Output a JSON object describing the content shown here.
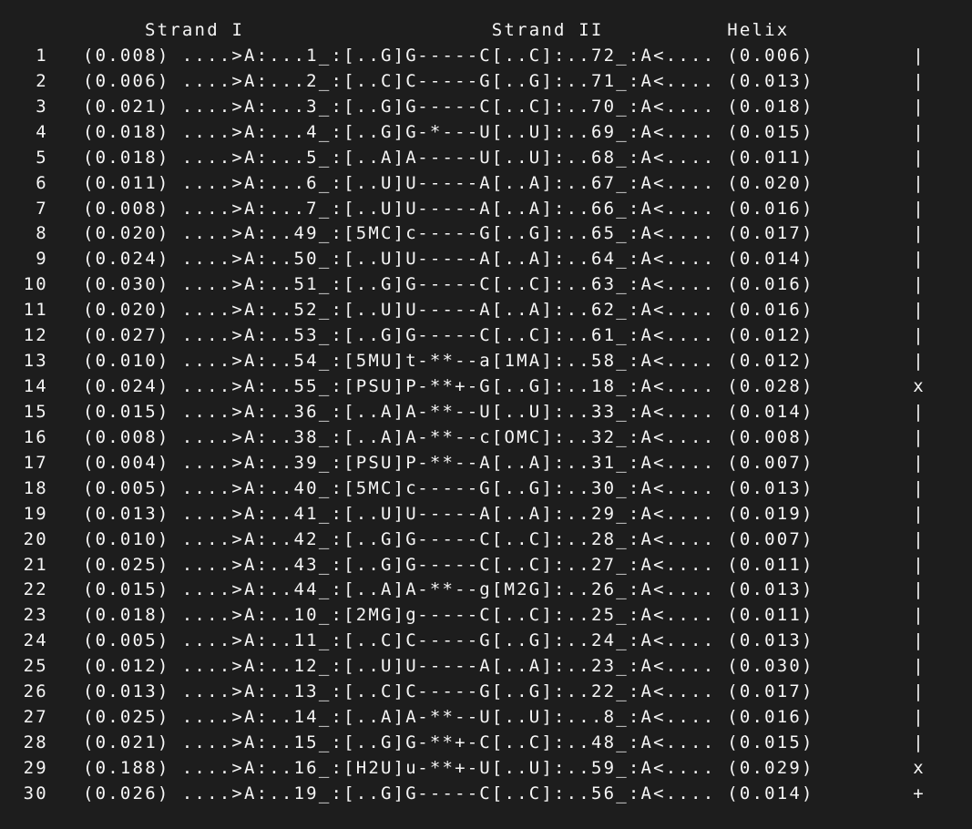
{
  "terminal": {
    "bg_color": "#1d1d1d",
    "fg_color": "#f6f6f6",
    "headers": {
      "strand_i": "Strand I",
      "strand_ii": "Strand II",
      "helix": "Helix"
    },
    "rows": [
      {
        "n": "1",
        "rmsd1": "(0.008)",
        "strand1": "....>A:...1_:[..G]G",
        "bond": "-----",
        "strand2": "C[..C]:..72_:A<....",
        "rmsd2": "(0.006)",
        "helix_mark": "|"
      },
      {
        "n": "2",
        "rmsd1": "(0.006)",
        "strand1": "....>A:...2_:[..C]C",
        "bond": "-----",
        "strand2": "G[..G]:..71_:A<....",
        "rmsd2": "(0.013)",
        "helix_mark": "|"
      },
      {
        "n": "3",
        "rmsd1": "(0.021)",
        "strand1": "....>A:...3_:[..G]G",
        "bond": "-----",
        "strand2": "C[..C]:..70_:A<....",
        "rmsd2": "(0.018)",
        "helix_mark": "|"
      },
      {
        "n": "4",
        "rmsd1": "(0.018)",
        "strand1": "....>A:...4_:[..G]G",
        "bond": "-*---",
        "strand2": "U[..U]:..69_:A<....",
        "rmsd2": "(0.015)",
        "helix_mark": "|"
      },
      {
        "n": "5",
        "rmsd1": "(0.018)",
        "strand1": "....>A:...5_:[..A]A",
        "bond": "-----",
        "strand2": "U[..U]:..68_:A<....",
        "rmsd2": "(0.011)",
        "helix_mark": "|"
      },
      {
        "n": "6",
        "rmsd1": "(0.011)",
        "strand1": "....>A:...6_:[..U]U",
        "bond": "-----",
        "strand2": "A[..A]:..67_:A<....",
        "rmsd2": "(0.020)",
        "helix_mark": "|"
      },
      {
        "n": "7",
        "rmsd1": "(0.008)",
        "strand1": "....>A:...7_:[..U]U",
        "bond": "-----",
        "strand2": "A[..A]:..66_:A<....",
        "rmsd2": "(0.016)",
        "helix_mark": "|"
      },
      {
        "n": "8",
        "rmsd1": "(0.020)",
        "strand1": "....>A:..49_:[5MC]c",
        "bond": "-----",
        "strand2": "G[..G]:..65_:A<....",
        "rmsd2": "(0.017)",
        "helix_mark": "|"
      },
      {
        "n": "9",
        "rmsd1": "(0.024)",
        "strand1": "....>A:..50_:[..U]U",
        "bond": "-----",
        "strand2": "A[..A]:..64_:A<....",
        "rmsd2": "(0.014)",
        "helix_mark": "|"
      },
      {
        "n": "10",
        "rmsd1": "(0.030)",
        "strand1": "....>A:..51_:[..G]G",
        "bond": "-----",
        "strand2": "C[..C]:..63_:A<....",
        "rmsd2": "(0.016)",
        "helix_mark": "|"
      },
      {
        "n": "11",
        "rmsd1": "(0.020)",
        "strand1": "....>A:..52_:[..U]U",
        "bond": "-----",
        "strand2": "A[..A]:..62_:A<....",
        "rmsd2": "(0.016)",
        "helix_mark": "|"
      },
      {
        "n": "12",
        "rmsd1": "(0.027)",
        "strand1": "....>A:..53_:[..G]G",
        "bond": "-----",
        "strand2": "C[..C]:..61_:A<....",
        "rmsd2": "(0.012)",
        "helix_mark": "|"
      },
      {
        "n": "13",
        "rmsd1": "(0.010)",
        "strand1": "....>A:..54_:[5MU]t",
        "bond": "-**--",
        "strand2": "a[1MA]:..58_:A<....",
        "rmsd2": "(0.012)",
        "helix_mark": "|"
      },
      {
        "n": "14",
        "rmsd1": "(0.024)",
        "strand1": "....>A:..55_:[PSU]P",
        "bond": "-**+-",
        "strand2": "G[..G]:..18_:A<....",
        "rmsd2": "(0.028)",
        "helix_mark": "x"
      },
      {
        "n": "15",
        "rmsd1": "(0.015)",
        "strand1": "....>A:..36_:[..A]A",
        "bond": "-**--",
        "strand2": "U[..U]:..33_:A<....",
        "rmsd2": "(0.014)",
        "helix_mark": "|"
      },
      {
        "n": "16",
        "rmsd1": "(0.008)",
        "strand1": "....>A:..38_:[..A]A",
        "bond": "-**--",
        "strand2": "c[OMC]:..32_:A<....",
        "rmsd2": "(0.008)",
        "helix_mark": "|"
      },
      {
        "n": "17",
        "rmsd1": "(0.004)",
        "strand1": "....>A:..39_:[PSU]P",
        "bond": "-**--",
        "strand2": "A[..A]:..31_:A<....",
        "rmsd2": "(0.007)",
        "helix_mark": "|"
      },
      {
        "n": "18",
        "rmsd1": "(0.005)",
        "strand1": "....>A:..40_:[5MC]c",
        "bond": "-----",
        "strand2": "G[..G]:..30_:A<....",
        "rmsd2": "(0.013)",
        "helix_mark": "|"
      },
      {
        "n": "19",
        "rmsd1": "(0.013)",
        "strand1": "....>A:..41_:[..U]U",
        "bond": "-----",
        "strand2": "A[..A]:..29_:A<....",
        "rmsd2": "(0.019)",
        "helix_mark": "|"
      },
      {
        "n": "20",
        "rmsd1": "(0.010)",
        "strand1": "....>A:..42_:[..G]G",
        "bond": "-----",
        "strand2": "C[..C]:..28_:A<....",
        "rmsd2": "(0.007)",
        "helix_mark": "|"
      },
      {
        "n": "21",
        "rmsd1": "(0.025)",
        "strand1": "....>A:..43_:[..G]G",
        "bond": "-----",
        "strand2": "C[..C]:..27_:A<....",
        "rmsd2": "(0.011)",
        "helix_mark": "|"
      },
      {
        "n": "22",
        "rmsd1": "(0.015)",
        "strand1": "....>A:..44_:[..A]A",
        "bond": "-**--",
        "strand2": "g[M2G]:..26_:A<....",
        "rmsd2": "(0.013)",
        "helix_mark": "|"
      },
      {
        "n": "23",
        "rmsd1": "(0.018)",
        "strand1": "....>A:..10_:[2MG]g",
        "bond": "-----",
        "strand2": "C[..C]:..25_:A<....",
        "rmsd2": "(0.011)",
        "helix_mark": "|"
      },
      {
        "n": "24",
        "rmsd1": "(0.005)",
        "strand1": "....>A:..11_:[..C]C",
        "bond": "-----",
        "strand2": "G[..G]:..24_:A<....",
        "rmsd2": "(0.013)",
        "helix_mark": "|"
      },
      {
        "n": "25",
        "rmsd1": "(0.012)",
        "strand1": "....>A:..12_:[..U]U",
        "bond": "-----",
        "strand2": "A[..A]:..23_:A<....",
        "rmsd2": "(0.030)",
        "helix_mark": "|"
      },
      {
        "n": "26",
        "rmsd1": "(0.013)",
        "strand1": "....>A:..13_:[..C]C",
        "bond": "-----",
        "strand2": "G[..G]:..22_:A<....",
        "rmsd2": "(0.017)",
        "helix_mark": "|"
      },
      {
        "n": "27",
        "rmsd1": "(0.025)",
        "strand1": "....>A:..14_:[..A]A",
        "bond": "-**--",
        "strand2": "U[..U]:...8_:A<....",
        "rmsd2": "(0.016)",
        "helix_mark": "|"
      },
      {
        "n": "28",
        "rmsd1": "(0.021)",
        "strand1": "....>A:..15_:[..G]G",
        "bond": "-**+-",
        "strand2": "C[..C]:..48_:A<....",
        "rmsd2": "(0.015)",
        "helix_mark": "|"
      },
      {
        "n": "29",
        "rmsd1": "(0.188)",
        "strand1": "....>A:..16_:[H2U]u",
        "bond": "-**+-",
        "strand2": "U[..U]:..59_:A<....",
        "rmsd2": "(0.029)",
        "helix_mark": "x"
      },
      {
        "n": "30",
        "rmsd1": "(0.026)",
        "strand1": "....>A:..19_:[..G]G",
        "bond": "-----",
        "strand2": "C[..C]:..56_:A<....",
        "rmsd2": "(0.014)",
        "helix_mark": "+"
      }
    ]
  }
}
